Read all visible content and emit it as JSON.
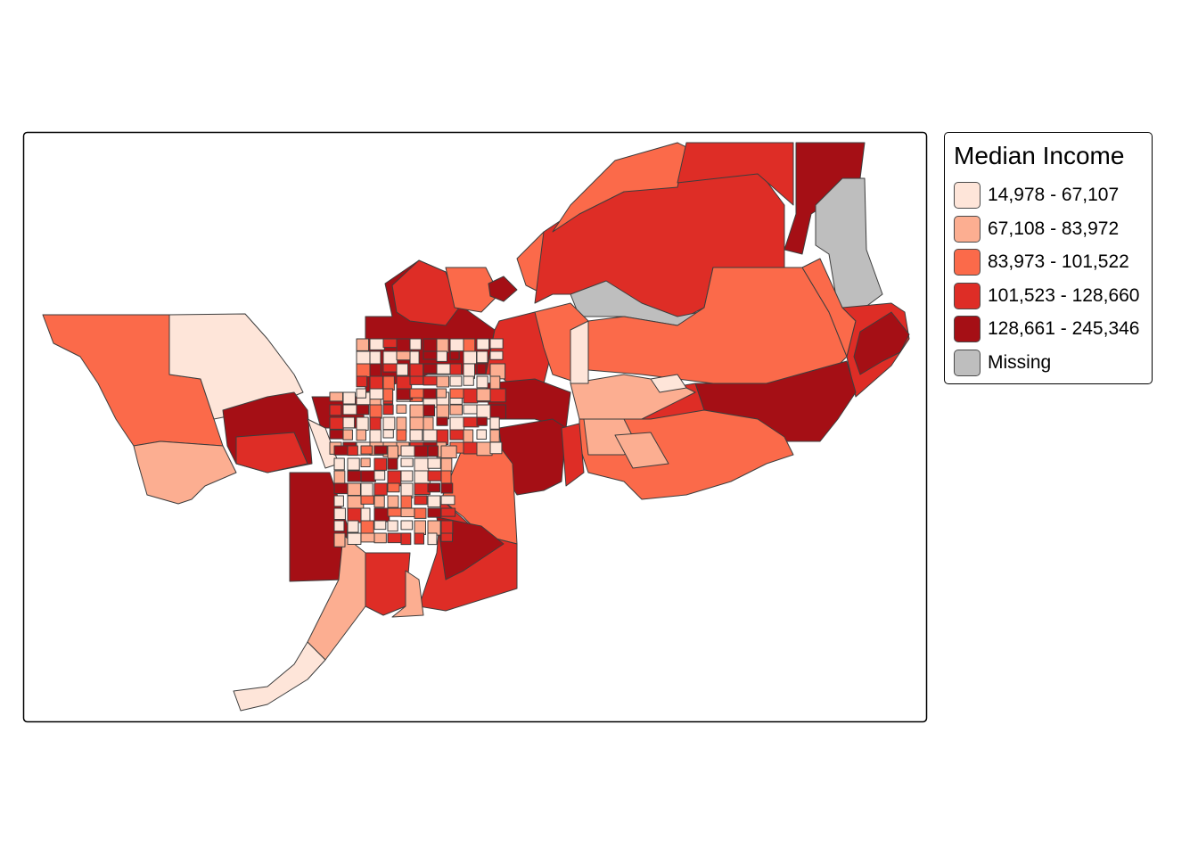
{
  "legend": {
    "title": "Median Income",
    "items": [
      {
        "label": "14,978 - 67,107",
        "color": "#FEE5D9"
      },
      {
        "label": "67,108 - 83,972",
        "color": "#FCAE91"
      },
      {
        "label": "83,973 - 101,522",
        "color": "#FB6A4A"
      },
      {
        "label": "101,523 - 128,660",
        "color": "#DE2D26"
      },
      {
        "label": "128,661 - 245,346",
        "color": "#A50F15"
      },
      {
        "label": "Missing",
        "color": "#BEBEBE"
      }
    ]
  },
  "border_color": "#3D3D3D"
}
